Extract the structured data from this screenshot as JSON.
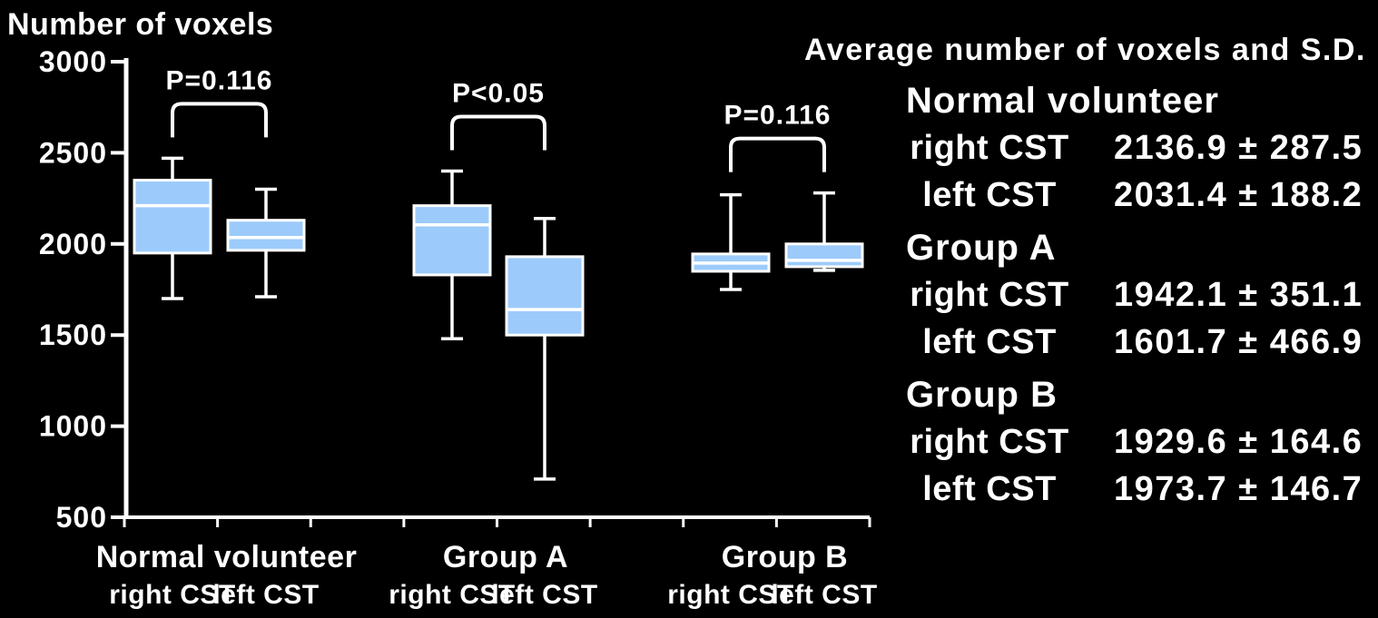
{
  "colors": {
    "background": "#000000",
    "box_fill": "#9CCBFB",
    "box_stroke": "#FFFFFF",
    "text": "#FFFFFF",
    "significant_p": "#F2A900"
  },
  "chart_data": {
    "type": "boxplot",
    "title": "Number of voxels",
    "ylabel": "Number of voxels",
    "ylim": [
      500,
      3000
    ],
    "yticks": [
      3000,
      2500,
      2000,
      1500,
      1000,
      500
    ],
    "grid": false,
    "groups": [
      {
        "label": "Normal volunteer",
        "p_label": "P=0.116",
        "p_color": "#FFFFFF",
        "boxes": [
          {
            "label": "right CST",
            "whisker_low": 1700,
            "q1": 1950,
            "median": 2210,
            "q3": 2350,
            "whisker_high": 2470
          },
          {
            "label": "left CST",
            "whisker_low": 1710,
            "q1": 1965,
            "median": 2035,
            "q3": 2130,
            "whisker_high": 2300
          }
        ]
      },
      {
        "label": "Group A",
        "p_label": "P<0.05",
        "p_color": "#F2A900",
        "boxes": [
          {
            "label": "right CST",
            "whisker_low": 1480,
            "q1": 1830,
            "median": 2105,
            "q3": 2210,
            "whisker_high": 2400
          },
          {
            "label": "left CST",
            "whisker_low": 710,
            "q1": 1500,
            "median": 1640,
            "q3": 1930,
            "whisker_high": 2140
          }
        ]
      },
      {
        "label": "Group B",
        "p_label": "P=0.116",
        "p_color": "#FFFFFF",
        "boxes": [
          {
            "label": "right CST",
            "whisker_low": 1750,
            "q1": 1850,
            "median": 1895,
            "q3": 1945,
            "whisker_high": 2270
          },
          {
            "label": "left CST",
            "whisker_low": 1855,
            "q1": 1875,
            "median": 1910,
            "q3": 2000,
            "whisker_high": 2280
          }
        ]
      }
    ]
  },
  "stats_panel": {
    "title": "Average number of voxels and S.D.",
    "groups": [
      {
        "heading": "Normal volunteer",
        "rows": [
          {
            "label": "right CST",
            "value": "2136.9 ± 287.5"
          },
          {
            "label": "left CST",
            "value": "2031.4 ± 188.2"
          }
        ]
      },
      {
        "heading": "Group A",
        "rows": [
          {
            "label": "right CST",
            "value": "1942.1 ± 351.1"
          },
          {
            "label": "left CST",
            "value": "1601.7 ± 466.9"
          }
        ]
      },
      {
        "heading": "Group B",
        "rows": [
          {
            "label": "right CST",
            "value": "1929.6 ± 164.6"
          },
          {
            "label": "left CST",
            "value": "1973.7 ± 146.7"
          }
        ]
      }
    ]
  }
}
